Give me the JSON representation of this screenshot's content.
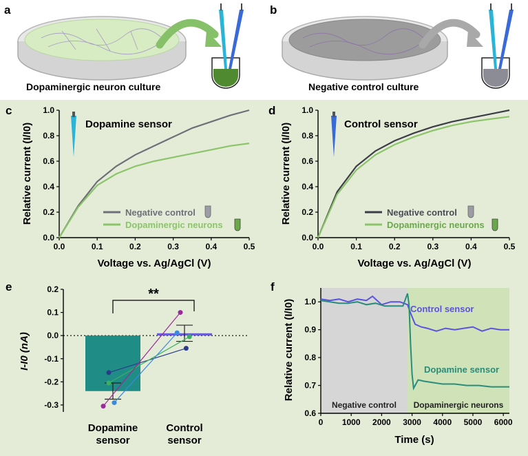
{
  "panels": {
    "a": {
      "letter": "a",
      "caption": "Dopaminergic neuron culture"
    },
    "b": {
      "letter": "b",
      "caption": "Negative control culture"
    },
    "c": {
      "letter": "c",
      "title": "Dopamine sensor"
    },
    "d": {
      "letter": "d",
      "title": "Control sensor"
    },
    "e": {
      "letter": "e",
      "significance": "**"
    },
    "f": {
      "letter": "f"
    }
  },
  "colors": {
    "panel_bg": "#e4ecd8",
    "negative_gray": "#6e6f78",
    "dopaminergic_green": "#8cc46a",
    "teal_bar": "#1f8c86",
    "purple_bar": "#6a5cd6",
    "control_line": "#5a52e0",
    "dopamine_line": "#2a8c7a",
    "gray_region": "#d6d6d6",
    "green_region": "#cfe2b8"
  },
  "chart_data": [
    {
      "id": "c",
      "type": "line",
      "title": "Dopamine sensor",
      "xlabel": "Voltage vs. Ag/AgCl (V)",
      "ylabel": "Relative current (I/I0)",
      "xlim": [
        0,
        0.5
      ],
      "ylim": [
        0,
        1.0
      ],
      "xticks": [
        "0.0",
        "0.1",
        "0.2",
        "0.3",
        "0.4",
        "0.5"
      ],
      "yticks": [
        "0.0",
        "0.2",
        "0.4",
        "0.6",
        "0.8",
        "1.0"
      ],
      "legend": [
        "Negative control",
        "Dopaminergic neurons"
      ],
      "series": [
        {
          "name": "Negative control",
          "x": [
            0,
            0.05,
            0.1,
            0.15,
            0.2,
            0.25,
            0.3,
            0.35,
            0.4,
            0.45,
            0.5
          ],
          "y": [
            0,
            0.25,
            0.44,
            0.56,
            0.65,
            0.72,
            0.79,
            0.86,
            0.91,
            0.96,
            1.0
          ]
        },
        {
          "name": "Dopaminergic neurons",
          "x": [
            0,
            0.05,
            0.1,
            0.15,
            0.2,
            0.25,
            0.3,
            0.35,
            0.4,
            0.45,
            0.5
          ],
          "y": [
            0,
            0.24,
            0.41,
            0.5,
            0.56,
            0.6,
            0.63,
            0.66,
            0.69,
            0.72,
            0.74
          ]
        }
      ]
    },
    {
      "id": "d",
      "type": "line",
      "title": "Control sensor",
      "xlabel": "Voltage vs. Ag/AgCl (V)",
      "ylabel": "Relative current (I/I0)",
      "xlim": [
        0,
        0.5
      ],
      "ylim": [
        0,
        1.0
      ],
      "xticks": [
        "0.0",
        "0.1",
        "0.2",
        "0.3",
        "0.4",
        "0.5"
      ],
      "yticks": [
        "0.0",
        "0.2",
        "0.4",
        "0.6",
        "0.8",
        "1.0"
      ],
      "legend": [
        "Negative control",
        "Dopaminergic neurons"
      ],
      "series": [
        {
          "name": "Negative control",
          "x": [
            0,
            0.05,
            0.1,
            0.15,
            0.2,
            0.25,
            0.3,
            0.35,
            0.4,
            0.45,
            0.5
          ],
          "y": [
            0,
            0.36,
            0.56,
            0.68,
            0.76,
            0.82,
            0.87,
            0.91,
            0.94,
            0.97,
            1.0
          ]
        },
        {
          "name": "Dopaminergic neurons",
          "x": [
            0,
            0.05,
            0.1,
            0.15,
            0.2,
            0.25,
            0.3,
            0.35,
            0.4,
            0.45,
            0.5
          ],
          "y": [
            0,
            0.34,
            0.53,
            0.65,
            0.73,
            0.79,
            0.84,
            0.88,
            0.91,
            0.93,
            0.95
          ]
        }
      ]
    },
    {
      "id": "e",
      "type": "bar",
      "ylabel": "I-I0 (nA)",
      "ylim": [
        -0.33,
        0.2
      ],
      "yticks": [
        "0.2",
        "0.1",
        "0.0",
        "-0.1",
        "-0.2",
        "-0.3"
      ],
      "categories": [
        "Dopamine sensor",
        "Control sensor"
      ],
      "category_lines": [
        [
          "Dopamine",
          "sensor"
        ],
        [
          "Control",
          "sensor"
        ]
      ],
      "values": [
        -0.24,
        0.01
      ],
      "error": [
        0.035,
        0.035
      ],
      "significance": "**",
      "paired_points": [
        {
          "dopamine": -0.16,
          "control": -0.055,
          "color": "#2a3a8c"
        },
        {
          "dopamine": -0.205,
          "control": -0.005,
          "color": "#3ab060"
        },
        {
          "dopamine": -0.29,
          "control": 0.012,
          "color": "#3a8ae0"
        },
        {
          "dopamine": -0.305,
          "control": 0.1,
          "color": "#9a2a9a"
        }
      ]
    },
    {
      "id": "f",
      "type": "line",
      "xlabel": "Time (s)",
      "ylabel": "Relative current (I/I0)",
      "xlim": [
        0,
        6200
      ],
      "ylim": [
        0.6,
        1.05
      ],
      "xticks": [
        "0",
        "1000",
        "2000",
        "3000",
        "4000",
        "5000",
        "6000"
      ],
      "yticks": [
        "0.6",
        "0.7",
        "0.8",
        "0.9",
        "1.0"
      ],
      "regions": [
        {
          "label": "Negative control",
          "start": 0,
          "end": 2850
        },
        {
          "label": "Dopaminergic neurons",
          "start": 2850,
          "end": 6200
        }
      ],
      "series": [
        {
          "name": "Control sensor",
          "x": [
            0,
            300,
            600,
            900,
            1200,
            1500,
            1700,
            2000,
            2300,
            2600,
            2850,
            2950,
            3100,
            3300,
            3500,
            3800,
            4100,
            4400,
            4700,
            5000,
            5300,
            5600,
            5900,
            6200
          ],
          "y": [
            1.01,
            1.005,
            1.01,
            1.0,
            1.01,
            1.005,
            1.02,
            0.99,
            1.0,
            1.0,
            0.99,
            0.96,
            0.92,
            0.91,
            0.905,
            0.895,
            0.905,
            0.9,
            0.905,
            0.91,
            0.895,
            0.905,
            0.9,
            0.9
          ]
        },
        {
          "name": "Dopamine sensor",
          "x": [
            0,
            300,
            600,
            900,
            1200,
            1500,
            1800,
            2100,
            2400,
            2700,
            2850,
            2900,
            2950,
            3000,
            3050,
            3100,
            3200,
            3400,
            3700,
            4000,
            4400,
            4800,
            5200,
            5600,
            6200
          ],
          "y": [
            1.005,
            1.0,
            0.995,
            0.995,
            1.0,
            0.99,
            0.995,
            0.985,
            0.985,
            0.985,
            1.03,
            0.99,
            0.85,
            0.74,
            0.69,
            0.7,
            0.72,
            0.715,
            0.71,
            0.705,
            0.705,
            0.7,
            0.7,
            0.695,
            0.695
          ]
        }
      ]
    }
  ]
}
